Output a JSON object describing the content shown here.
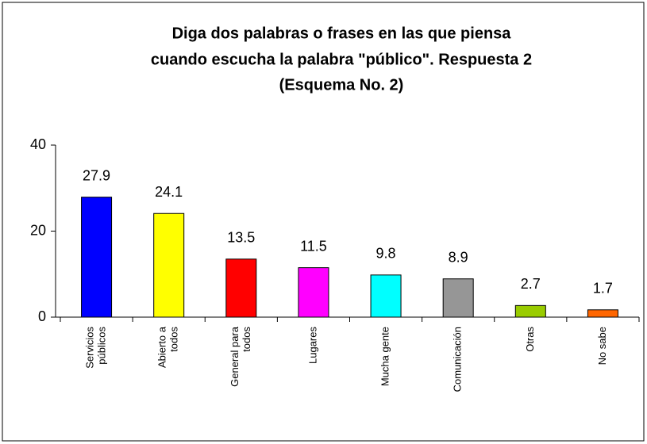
{
  "chart_data": {
    "type": "bar",
    "title": [
      "Diga dos palabras o frases en las que piensa",
      "cuando escucha la palabra \"público\". Respuesta 2",
      "(Esquema No. 2)"
    ],
    "categories": [
      [
        "Servicios",
        "públicos"
      ],
      [
        "Abierto a",
        "todos"
      ],
      [
        "General para",
        "todos"
      ],
      [
        "Lugares"
      ],
      [
        "Mucha gente"
      ],
      [
        "Comunicación"
      ],
      [
        "Otras"
      ],
      [
        "No sabe"
      ]
    ],
    "values": [
      27.9,
      24.1,
      13.5,
      11.5,
      9.8,
      8.9,
      2.7,
      1.7
    ],
    "colors": [
      "#0000ff",
      "#ffff00",
      "#ff0000",
      "#ff00ff",
      "#00ffff",
      "#969696",
      "#99cc00",
      "#ff6600"
    ],
    "ylim": [
      0,
      40
    ],
    "yticks": [
      0,
      20,
      40
    ],
    "grid": false
  }
}
